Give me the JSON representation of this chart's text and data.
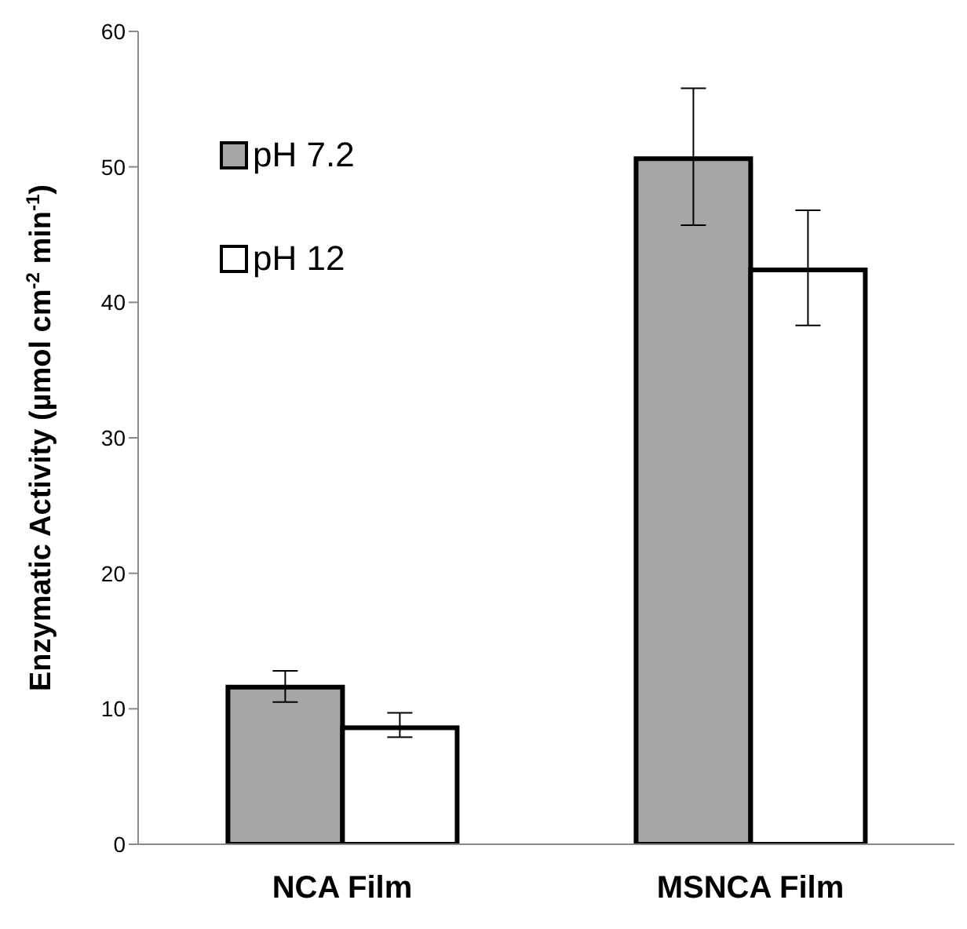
{
  "chart_data": {
    "type": "bar",
    "ylabel": "Enzymatic Activity (µmol cm$^{-2}$ min$^{-1}$)",
    "categories": [
      "NCA Film",
      "MSNCA Film"
    ],
    "series": [
      {
        "name": "pH 7.2",
        "color": "#a6a6a6",
        "values": [
          11.6,
          50.6
        ],
        "errors": [
          [
            10.5,
            12.8
          ],
          [
            45.7,
            55.8
          ]
        ]
      },
      {
        "name": "pH 12",
        "color": "#ffffff",
        "values": [
          8.6,
          42.4
        ],
        "errors": [
          [
            7.9,
            9.7
          ],
          [
            38.3,
            46.8
          ]
        ]
      }
    ],
    "ylim": [
      0,
      60
    ],
    "yticks": [
      0,
      10,
      20,
      30,
      40,
      50,
      60
    ],
    "grid": false,
    "legend": "top left"
  }
}
